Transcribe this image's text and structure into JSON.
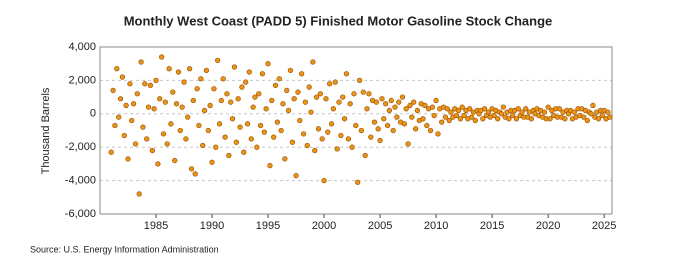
{
  "chart_data": {
    "type": "scatter",
    "title": "Monthly West Coast (PADD 5) Finished Motor Gasoline Stock Change",
    "y_label": "Thousand Barrels",
    "source": "Source: U.S. Energy Information Administration",
    "xlim": [
      1980,
      2025.7
    ],
    "ylim": [
      -6000,
      4000
    ],
    "xticks": [
      1985,
      1990,
      1995,
      2000,
      2005,
      2010,
      2015,
      2020,
      2025
    ],
    "yticks": [
      {
        "value": -6000,
        "label": "-6,000"
      },
      {
        "value": -4000,
        "label": "-4,000"
      },
      {
        "value": -2000,
        "label": "-2,000"
      },
      0,
      {
        "value": 2000,
        "label": "2,000"
      },
      {
        "value": 4000,
        "label": "4,000"
      }
    ],
    "grid": true,
    "color": "#e8941a",
    "x": [
      1981,
      1981.17,
      1981.33,
      1981.5,
      1981.67,
      1981.83,
      1982,
      1982.17,
      1982.33,
      1982.5,
      1982.67,
      1982.83,
      1983,
      1983.17,
      1983.33,
      1983.5,
      1983.67,
      1983.83,
      1984,
      1984.17,
      1984.33,
      1984.5,
      1984.67,
      1984.83,
      1985,
      1985.17,
      1985.33,
      1985.5,
      1985.67,
      1985.83,
      1986,
      1986.17,
      1986.33,
      1986.5,
      1986.67,
      1986.83,
      1987,
      1987.17,
      1987.33,
      1987.5,
      1987.67,
      1987.83,
      1988,
      1988.17,
      1988.33,
      1988.5,
      1988.67,
      1988.83,
      1989,
      1989.17,
      1989.33,
      1989.5,
      1989.67,
      1989.83,
      1990,
      1990.17,
      1990.33,
      1990.5,
      1990.67,
      1990.83,
      1991,
      1991.17,
      1991.33,
      1991.5,
      1991.67,
      1991.83,
      1992,
      1992.17,
      1992.33,
      1992.5,
      1992.67,
      1992.83,
      1993,
      1993.17,
      1993.33,
      1993.5,
      1993.67,
      1993.83,
      1994,
      1994.17,
      1994.33,
      1994.5,
      1994.67,
      1994.83,
      1995,
      1995.17,
      1995.33,
      1995.5,
      1995.67,
      1995.83,
      1996,
      1996.17,
      1996.33,
      1996.5,
      1996.67,
      1996.83,
      1997,
      1997.17,
      1997.33,
      1997.5,
      1997.67,
      1997.83,
      1998,
      1998.17,
      1998.33,
      1998.5,
      1998.67,
      1998.83,
      1999,
      1999.17,
      1999.33,
      1999.5,
      1999.67,
      1999.83,
      2000,
      2000.17,
      2000.33,
      2000.5,
      2000.67,
      2000.83,
      2001,
      2001.17,
      2001.33,
      2001.5,
      2001.67,
      2001.83,
      2002,
      2002.17,
      2002.33,
      2002.5,
      2002.67,
      2002.83,
      2003,
      2003.17,
      2003.33,
      2003.5,
      2003.67,
      2003.83,
      2004,
      2004.17,
      2004.33,
      2004.5,
      2004.67,
      2004.83,
      2005,
      2005.17,
      2005.33,
      2005.5,
      2005.67,
      2005.83,
      2006,
      2006.17,
      2006.33,
      2006.5,
      2006.67,
      2006.83,
      2007,
      2007.17,
      2007.33,
      2007.5,
      2007.67,
      2007.83,
      2008,
      2008.17,
      2008.33,
      2008.5,
      2008.67,
      2008.83,
      2009,
      2009.17,
      2009.33,
      2009.5,
      2009.67,
      2009.83,
      2010,
      2010.17,
      2010.33,
      2010.5,
      2010.67,
      2010.83,
      2011,
      2011.17,
      2011.33,
      2011.5,
      2011.67,
      2011.83,
      2012,
      2012.17,
      2012.33,
      2012.5,
      2012.67,
      2012.83,
      2013,
      2013.17,
      2013.33,
      2013.5,
      2013.67,
      2013.83,
      2014,
      2014.17,
      2014.33,
      2014.5,
      2014.67,
      2014.83,
      2015,
      2015.17,
      2015.33,
      2015.5,
      2015.67,
      2015.83,
      2016,
      2016.17,
      2016.33,
      2016.5,
      2016.67,
      2016.83,
      2017,
      2017.17,
      2017.33,
      2017.5,
      2017.67,
      2017.83,
      2018,
      2018.17,
      2018.33,
      2018.5,
      2018.67,
      2018.83,
      2019,
      2019.17,
      2019.33,
      2019.5,
      2019.67,
      2019.83,
      2020,
      2020.17,
      2020.33,
      2020.5,
      2020.67,
      2020.83,
      2021,
      2021.17,
      2021.33,
      2021.5,
      2021.67,
      2021.83,
      2022,
      2022.17,
      2022.33,
      2022.5,
      2022.67,
      2022.83,
      2023,
      2023.17,
      2023.33,
      2023.5,
      2023.67,
      2023.83,
      2024,
      2024.17,
      2024.33,
      2024.5,
      2024.67,
      2024.83,
      2025,
      2025.17,
      2025.33,
      2025.5
    ],
    "values": [
      -2300,
      1400,
      -700,
      2700,
      -200,
      900,
      2200,
      -1300,
      500,
      -2700,
      1800,
      -400,
      600,
      -1800,
      1200,
      -4800,
      3100,
      -800,
      1800,
      -1500,
      400,
      1700,
      -2200,
      300,
      2000,
      -3000,
      900,
      3400,
      -1200,
      700,
      -1800,
      2700,
      -600,
      1300,
      -2800,
      600,
      2500,
      -1000,
      400,
      1900,
      -1500,
      -200,
      2700,
      -3300,
      800,
      -3600,
      1500,
      -700,
      2100,
      -1900,
      200,
      2600,
      -1000,
      500,
      -2900,
      1500,
      -2000,
      3200,
      -600,
      800,
      2100,
      -1400,
      1200,
      -2500,
      700,
      -300,
      2800,
      -1700,
      900,
      -800,
      1600,
      -2300,
      1900,
      -600,
      2500,
      -1500,
      400,
      1000,
      -2000,
      1200,
      -700,
      2400,
      -1100,
      300,
      3000,
      -3100,
      800,
      -1400,
      1700,
      -500,
      2100,
      -1000,
      600,
      -2700,
      1400,
      200,
      2600,
      -1700,
      900,
      -3700,
      1300,
      -400,
      2400,
      -1200,
      700,
      -1900,
      1600,
      100,
      3100,
      -2200,
      1000,
      -900,
      1200,
      -1500,
      -4000,
      900,
      -1100,
      1800,
      -600,
      300,
      1900,
      -2100,
      700,
      -1300,
      1000,
      -300,
      2400,
      -1500,
      600,
      -2000,
      1200,
      -700,
      -4100,
      2000,
      -1000,
      1300,
      -2500,
      300,
      1200,
      -1400,
      800,
      -500,
      700,
      -900,
      -1600,
      900,
      -300,
      600,
      -700,
      200,
      800,
      -1000,
      400,
      -200,
      700,
      -500,
      1000,
      -600,
      300,
      -1800,
      500,
      -200,
      700,
      -900,
      200,
      -400,
      600,
      -300,
      500,
      -700,
      300,
      -1000,
      400,
      -100,
      800,
      -1200,
      300,
      -500,
      400,
      -200,
      300,
      -400,
      100,
      -200,
      300,
      -100,
      200,
      -300,
      400,
      -100,
      200,
      -300,
      300,
      -200,
      100,
      -400,
      200,
      0,
      200,
      -300,
      300,
      -100,
      100,
      -200,
      300,
      -100,
      200,
      -300,
      100,
      0,
      400,
      -200,
      100,
      -300,
      200,
      -100,
      200,
      -300,
      300,
      -100,
      100,
      -200,
      300,
      -200,
      100,
      -300,
      200,
      0,
      300,
      -100,
      200,
      -200,
      100,
      -300,
      400,
      -300,
      200,
      -100,
      300,
      -200,
      300,
      -200,
      100,
      -300,
      200,
      0,
      200,
      -300,
      100,
      -200,
      300,
      -100,
      300,
      -200,
      200,
      -400,
      100,
      0,
      500,
      -200,
      100,
      -300,
      200,
      -100,
      200,
      -300,
      100,
      -200
    ]
  }
}
